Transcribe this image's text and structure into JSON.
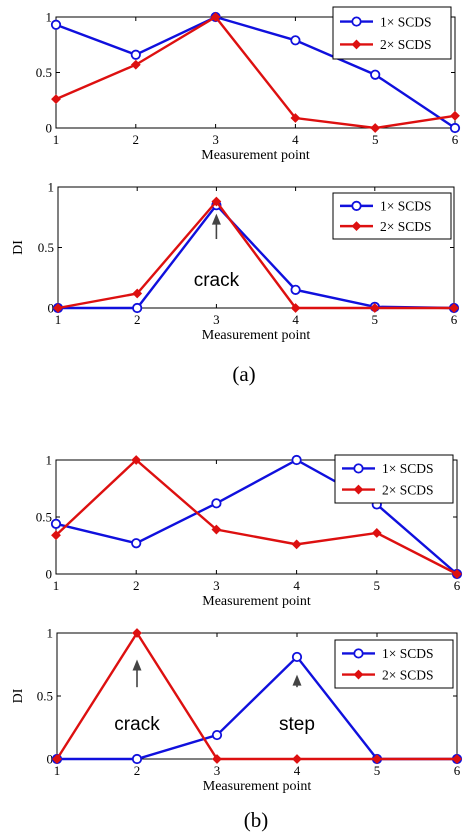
{
  "colors": {
    "series1": "#1010dd",
    "series2": "#dd1010",
    "axis": "#000000",
    "annotation_arrow": "#444444"
  },
  "icons": {
    "series1_marker": "open-circle",
    "series2_marker": "filled-diamond"
  },
  "captions": [
    "(a)",
    "(b)"
  ],
  "chart_data": [
    {
      "type": "line",
      "group": "(a)",
      "x": [
        1,
        2,
        3,
        4,
        5,
        6
      ],
      "xlim": [
        1,
        6
      ],
      "ylim": [
        0,
        1
      ],
      "xticks": [
        "1",
        "2",
        "3",
        "4",
        "5",
        "6"
      ],
      "yticks": [
        "0",
        "0.5",
        "1"
      ],
      "xlabel": "Measurement point",
      "ylabel": "",
      "legend": "top-right",
      "grid": false,
      "series": [
        {
          "name": "1× SCDS",
          "values": [
            0.93,
            0.66,
            1.0,
            0.79,
            0.48,
            0.0
          ]
        },
        {
          "name": "2× SCDS",
          "values": [
            0.26,
            0.57,
            1.0,
            0.09,
            0.0,
            0.11
          ]
        }
      ],
      "annotations": []
    },
    {
      "type": "line",
      "group": "(a)",
      "x": [
        1,
        2,
        3,
        4,
        5,
        6
      ],
      "xlim": [
        1,
        6
      ],
      "ylim": [
        0,
        1
      ],
      "xticks": [
        "1",
        "2",
        "3",
        "4",
        "5",
        "6"
      ],
      "yticks": [
        "0",
        "0.5",
        "1"
      ],
      "xlabel": "Measurement point",
      "ylabel": "DI",
      "legend": "top-right",
      "grid": false,
      "series": [
        {
          "name": "1× SCDS",
          "values": [
            0.0,
            0.0,
            0.85,
            0.15,
            0.01,
            0.0
          ]
        },
        {
          "name": "2× SCDS",
          "values": [
            0.0,
            0.12,
            0.88,
            0.0,
            0.0,
            0.0
          ]
        }
      ],
      "annotations": [
        {
          "text": "crack",
          "x": 3,
          "arrow_from": 0.57,
          "arrow_to": 0.78,
          "text_y": 0.18
        }
      ]
    },
    {
      "type": "line",
      "group": "(b)",
      "x": [
        1,
        2,
        3,
        4,
        5,
        6
      ],
      "xlim": [
        1,
        6
      ],
      "ylim": [
        0,
        1
      ],
      "xticks": [
        "1",
        "2",
        "3",
        "4",
        "5",
        "6"
      ],
      "yticks": [
        "0",
        "0.5",
        "1"
      ],
      "xlabel": "Measurement point",
      "ylabel": "",
      "legend": "top-right",
      "grid": false,
      "series": [
        {
          "name": "1× SCDS",
          "values": [
            0.44,
            0.27,
            0.62,
            1.0,
            0.61,
            0.0
          ]
        },
        {
          "name": "2× SCDS",
          "values": [
            0.34,
            1.0,
            0.39,
            0.26,
            0.36,
            0.0
          ]
        }
      ],
      "annotations": []
    },
    {
      "type": "line",
      "group": "(b)",
      "x": [
        1,
        2,
        3,
        4,
        5,
        6
      ],
      "xlim": [
        1,
        6
      ],
      "ylim": [
        0,
        1
      ],
      "xticks": [
        "1",
        "2",
        "3",
        "4",
        "5",
        "6"
      ],
      "yticks": [
        "0",
        "0.5",
        "1"
      ],
      "xlabel": "Measurement point",
      "ylabel": "DI",
      "legend": "top-right",
      "grid": false,
      "series": [
        {
          "name": "1× SCDS",
          "values": [
            0.0,
            0.0,
            0.19,
            0.81,
            0.0,
            0.0
          ]
        },
        {
          "name": "2× SCDS",
          "values": [
            0.0,
            1.0,
            0.0,
            0.0,
            0.0,
            0.0
          ]
        }
      ],
      "annotations": [
        {
          "text": "crack",
          "x": 2,
          "arrow_from": 0.57,
          "arrow_to": 0.79,
          "text_y": 0.23
        },
        {
          "text": "step",
          "x": 4,
          "arrow_from": 0.57,
          "arrow_to": 0.67,
          "text_y": 0.23
        }
      ]
    }
  ]
}
